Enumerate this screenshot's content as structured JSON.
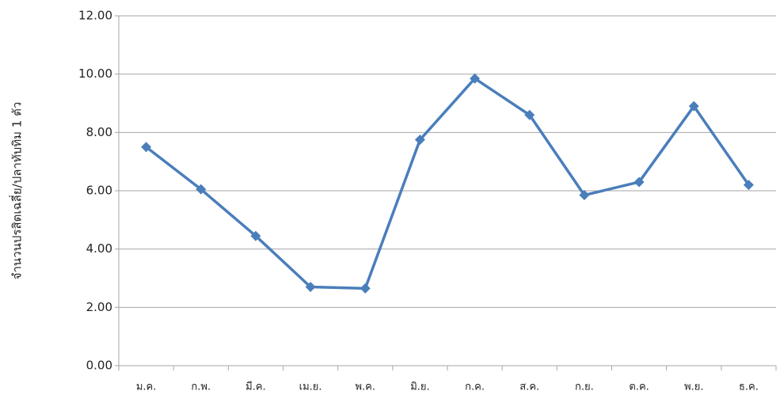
{
  "chart_data": {
    "type": "line",
    "y_label": "จำนวนปรสิตเฉลี่ย/ปลาทับทิม 1 ตัว",
    "categories": [
      "ม.ค.",
      "ก.พ.",
      "มี.ค.",
      "เม.ย.",
      "พ.ค.",
      "มิ.ย.",
      "ก.ค.",
      "ส.ค.",
      "ก.ย.",
      "ต.ค.",
      "พ.ย.",
      "ธ.ค."
    ],
    "series": [
      {
        "name": "จำนวนปรสิตเฉลี่ย",
        "color": "#4a7ebb",
        "values": [
          7.5,
          6.05,
          4.45,
          2.7,
          2.65,
          7.75,
          9.85,
          8.6,
          5.85,
          6.3,
          8.9,
          6.2
        ]
      }
    ],
    "ylim": [
      0,
      12
    ],
    "yticks": [
      {
        "value": 0,
        "label": "0.00"
      },
      {
        "value": 2,
        "label": "2.00"
      },
      {
        "value": 4,
        "label": "4.00"
      },
      {
        "value": 6,
        "label": "6.00"
      },
      {
        "value": 8,
        "label": "8.00"
      },
      {
        "value": 10,
        "label": "10.00"
      },
      {
        "value": 12,
        "label": "12.00"
      }
    ],
    "grid": true
  }
}
